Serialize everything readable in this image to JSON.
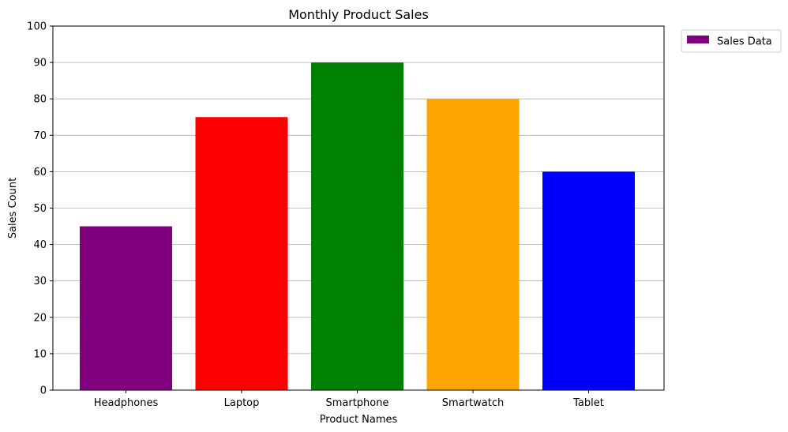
{
  "chart_data": {
    "type": "bar",
    "title": "Monthly Product Sales",
    "xlabel": "Product Names",
    "ylabel": "Sales Count",
    "categories": [
      "Headphones",
      "Laptop",
      "Smartphone",
      "Smartwatch",
      "Tablet"
    ],
    "values": [
      45,
      75,
      90,
      80,
      60
    ],
    "bar_colors": [
      "#800080",
      "#ff0000",
      "#008000",
      "#ffa500",
      "#0000ff"
    ],
    "ylim": [
      0,
      100
    ],
    "yticks": [
      0,
      10,
      20,
      30,
      40,
      50,
      60,
      70,
      80,
      90,
      100
    ],
    "grid": "y-axis",
    "legend": {
      "placement": "outside-top-right",
      "entries": [
        {
          "label": "Sales Data",
          "color": "#800080"
        }
      ]
    }
  }
}
